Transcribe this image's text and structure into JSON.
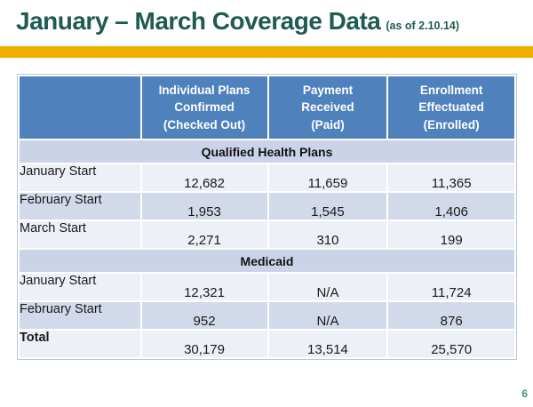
{
  "slide": {
    "title": "January – March Coverage Data",
    "title_suffix": "(as of 2.10.14)",
    "page_number": "6"
  },
  "colors": {
    "title_green": "#1e5b52",
    "accent_gold": "#f0b000",
    "header_blue": "#4f81bd",
    "section_fill": "#cbd3e8",
    "band_light": "#edf0f7",
    "band_dark": "#d2d9ea",
    "page_number_green": "#3d9186"
  },
  "table": {
    "headers": [
      "",
      "Individual Plans\nConfirmed\n(Checked Out)",
      "Payment\nReceived\n(Paid)",
      "Enrollment\nEffectuated\n(Enrolled)"
    ],
    "rows": [
      {
        "type": "section",
        "label": "Qualified Health Plans"
      },
      {
        "type": "data",
        "label": "January Start",
        "values": [
          "12,682",
          "11,659",
          "11,365"
        ]
      },
      {
        "type": "data",
        "label": "February Start",
        "values": [
          "1,953",
          "1,545",
          "1,406"
        ]
      },
      {
        "type": "data",
        "label": "March Start",
        "values": [
          "2,271",
          "310",
          "199"
        ]
      },
      {
        "type": "section",
        "label": "Medicaid"
      },
      {
        "type": "data",
        "label": "January Start",
        "values": [
          "12,321",
          "N/A",
          "11,724"
        ]
      },
      {
        "type": "data",
        "label": "February Start",
        "values": [
          "952",
          "N/A",
          "876"
        ]
      },
      {
        "type": "data",
        "label": "Total",
        "values": [
          "30,179",
          "13,514",
          "25,570"
        ]
      }
    ]
  }
}
